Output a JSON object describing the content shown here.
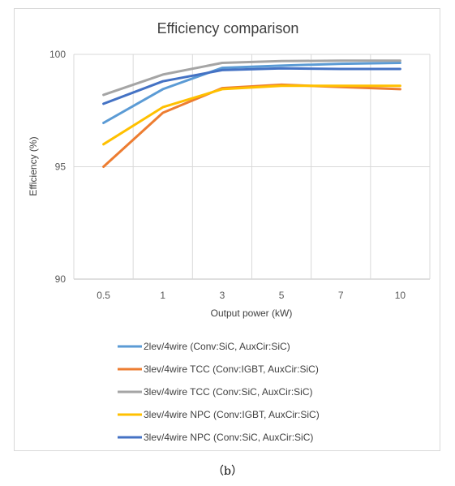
{
  "chart_data": {
    "type": "line",
    "title": "Efficiency comparison",
    "xlabel": "Output power (kW)",
    "ylabel": "Efficiency (%)",
    "categories": [
      "0.5",
      "1",
      "3",
      "5",
      "7",
      "10"
    ],
    "ylim": [
      90,
      100
    ],
    "yticks": [
      "90",
      "95",
      "100"
    ],
    "grid": true,
    "legend_position": "bottom",
    "series": [
      {
        "name": "2lev/4wire (Conv:SiC, AuxCir:SiC)",
        "color": "#5b9bd5",
        "values": [
          96.95,
          98.45,
          99.4,
          99.5,
          99.58,
          99.62
        ]
      },
      {
        "name": "3lev/4wire TCC (Conv:IGBT, AuxCir:SiC)",
        "color": "#ed7d31",
        "values": [
          95.0,
          97.4,
          98.5,
          98.65,
          98.55,
          98.45
        ]
      },
      {
        "name": "3lev/4wire TCC (Conv:SiC, AuxCir:SiC)",
        "color": "#a5a5a5",
        "values": [
          98.2,
          99.1,
          99.62,
          99.7,
          99.72,
          99.72
        ]
      },
      {
        "name": "3lev/4wire NPC (Conv:IGBT, AuxCir:SiC)",
        "color": "#ffc000",
        "values": [
          96.0,
          97.65,
          98.45,
          98.6,
          98.6,
          98.6
        ]
      },
      {
        "name": "3lev/4wire NPC (Conv:SiC, AuxCir:SiC)",
        "color": "#4472c4",
        "values": [
          97.8,
          98.8,
          99.3,
          99.38,
          99.35,
          99.35
        ]
      }
    ]
  },
  "caption": "（b）"
}
